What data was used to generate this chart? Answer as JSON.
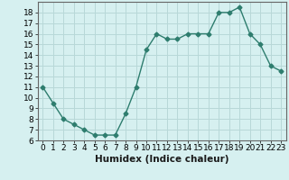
{
  "x": [
    0,
    1,
    2,
    3,
    4,
    5,
    6,
    7,
    8,
    9,
    10,
    11,
    12,
    13,
    14,
    15,
    16,
    17,
    18,
    19,
    20,
    21,
    22,
    23
  ],
  "y": [
    11,
    9.5,
    8,
    7.5,
    7,
    6.5,
    6.5,
    6.5,
    8.5,
    11,
    14.5,
    16,
    15.5,
    15.5,
    16,
    16,
    16,
    18,
    18,
    18.5,
    16,
    15,
    13,
    12.5
  ],
  "line_color": "#2e7d6e",
  "marker": "D",
  "marker_size": 2.5,
  "bg_color": "#d6f0f0",
  "grid_color": "#b8d8d8",
  "xlabel": "Humidex (Indice chaleur)",
  "ylim": [
    6,
    19
  ],
  "xlim": [
    -0.5,
    23.5
  ],
  "yticks": [
    6,
    7,
    8,
    9,
    10,
    11,
    12,
    13,
    14,
    15,
    16,
    17,
    18
  ],
  "xticks": [
    0,
    1,
    2,
    3,
    4,
    5,
    6,
    7,
    8,
    9,
    10,
    11,
    12,
    13,
    14,
    15,
    16,
    17,
    18,
    19,
    20,
    21,
    22,
    23
  ],
  "tick_fontsize": 6.5,
  "xlabel_fontsize": 7.5
}
